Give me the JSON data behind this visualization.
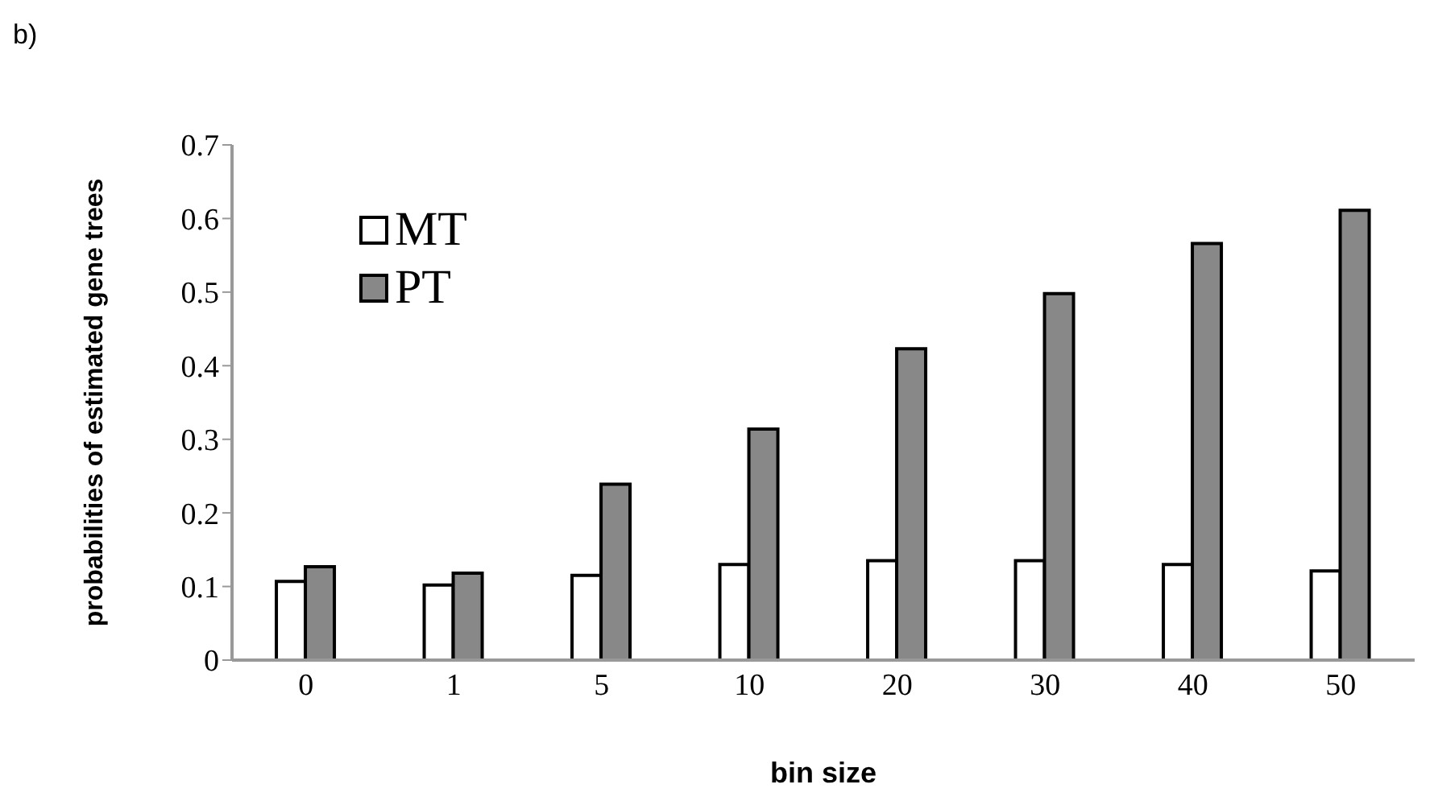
{
  "chart_data": {
    "type": "bar",
    "xlabel": "bin size",
    "ylabel": "probabilities of estimated gene trees",
    "annotations": [
      "b)"
    ],
    "categories": [
      "0",
      "1",
      "5",
      "10",
      "20",
      "30",
      "40",
      "50"
    ],
    "series": [
      {
        "name": "MT",
        "color": "#ffffff",
        "values": [
          0.107,
          0.102,
          0.115,
          0.13,
          0.135,
          0.135,
          0.13,
          0.121
        ]
      },
      {
        "name": "PT",
        "color": "#888888",
        "values": [
          0.127,
          0.118,
          0.239,
          0.314,
          0.423,
          0.498,
          0.566,
          0.611
        ]
      }
    ],
    "ylim": [
      0,
      0.7
    ],
    "yticks": [
      0,
      0.1,
      0.2,
      0.3,
      0.4,
      0.5,
      0.6,
      0.7
    ],
    "grid": false,
    "legend": "top left"
  }
}
